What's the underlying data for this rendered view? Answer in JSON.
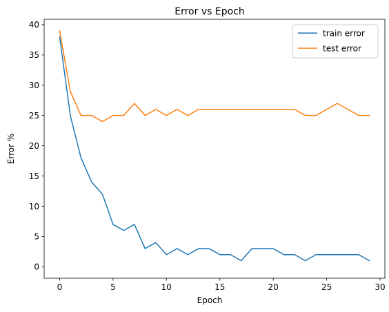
{
  "chart_data": {
    "type": "line",
    "title": "Error vs Epoch",
    "xlabel": "Epoch",
    "ylabel": "Error %",
    "xlim": [
      -1.45,
      30.45
    ],
    "ylim": [
      -1.9,
      40.9
    ],
    "x_ticks": [
      0,
      5,
      10,
      15,
      20,
      25,
      30
    ],
    "y_ticks": [
      0,
      5,
      10,
      15,
      20,
      25,
      30,
      35,
      40
    ],
    "grid": false,
    "legend_position": "top-right",
    "x": [
      0,
      1,
      2,
      3,
      4,
      5,
      6,
      7,
      8,
      9,
      10,
      11,
      12,
      13,
      14,
      15,
      16,
      17,
      18,
      19,
      20,
      21,
      22,
      23,
      24,
      25,
      26,
      27,
      28,
      29
    ],
    "series": [
      {
        "name": "train error",
        "color": "#1f77b4",
        "values": [
          38,
          25,
          18,
          14,
          12,
          7,
          6,
          7,
          3,
          4,
          2,
          3,
          2,
          3,
          3,
          2,
          2,
          1,
          3,
          3,
          3,
          2,
          2,
          1,
          2,
          2,
          2,
          2,
          2,
          1
        ]
      },
      {
        "name": "test error",
        "color": "#ff7f0e",
        "values": [
          39,
          29,
          25,
          25,
          24,
          25,
          25,
          27,
          25,
          26,
          25,
          26,
          25,
          26,
          26,
          26,
          26,
          26,
          26,
          26,
          26,
          26,
          26,
          25,
          25,
          26,
          27,
          26,
          25,
          25
        ]
      }
    ]
  }
}
